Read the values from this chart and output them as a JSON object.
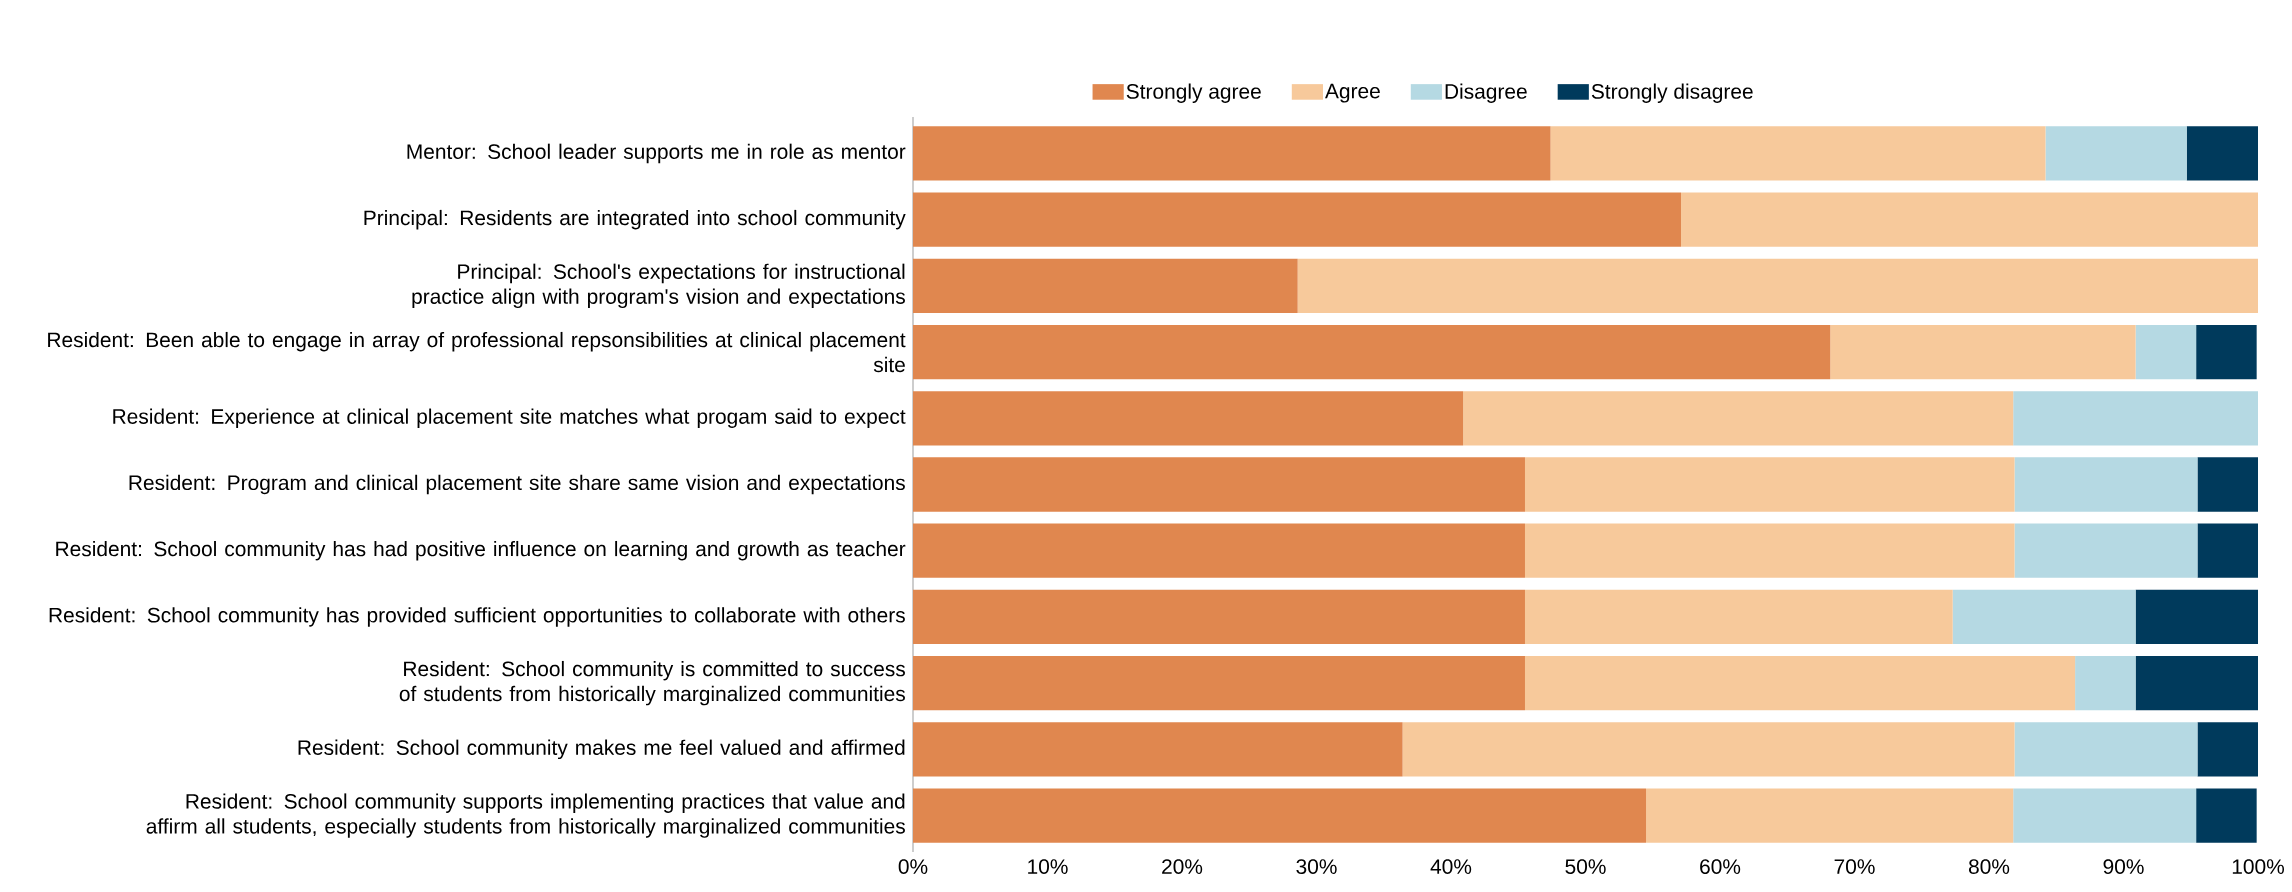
{
  "chart_data": {
    "type": "bar",
    "orientation": "horizontal",
    "stacked": true,
    "legend": "top",
    "grid": false,
    "categories": [
      "Mentor: School leader supports me in role as mentor",
      "Principal: Residents are integrated into school community",
      "Principal: School's expectations for instructional practice align with program's vision and expectations",
      "Resident: Been able to engage in array of professional repsonsibilities at clinical placement site",
      "Resident: Experience at clinical placement site matches what progam said to expect",
      "Resident: Program and clinical placement site share same vision and expectations",
      "Resident: School community has had positive influence on learning and growth as teacher",
      "Resident: School community has provided sufficient opportunities to collaborate with others",
      "Resident: School community is committed to success of students from historically marginalized communities",
      "Resident: School community makes me feel valued and affirmed",
      "Resident: School community supports implementing practices that value and affirm all students, especially students from historically marginalized communities"
    ],
    "series": [
      {
        "name": "Strongly agree",
        "color": "#e0874f",
        "values": [
          47.4,
          57.1,
          28.6,
          68.2,
          40.9,
          45.5,
          45.5,
          45.5,
          45.5,
          36.4,
          54.5
        ]
      },
      {
        "name": "Agree",
        "color": "#f7c99b",
        "values": [
          36.8,
          42.9,
          71.4,
          22.7,
          40.9,
          36.4,
          36.4,
          31.8,
          40.9,
          45.5,
          27.3
        ]
      },
      {
        "name": "Disagree",
        "color": "#b5d9e3",
        "values": [
          10.5,
          0,
          0,
          4.5,
          18.2,
          13.6,
          13.6,
          13.6,
          4.5,
          13.6,
          13.6
        ]
      },
      {
        "name": "Strongly disagree",
        "color": "#003a5c",
        "values": [
          5.3,
          0,
          0,
          4.5,
          0,
          4.5,
          4.5,
          9.1,
          9.1,
          4.5,
          4.5
        ]
      }
    ],
    "xlim": [
      0,
      100
    ],
    "xticks": [
      {
        "value": 0,
        "label": "0%"
      },
      {
        "value": 10,
        "label": "10%"
      },
      {
        "value": 20,
        "label": "20%"
      },
      {
        "value": 30,
        "label": "30%"
      },
      {
        "value": 40,
        "label": "40%"
      },
      {
        "value": 50,
        "label": "50%"
      },
      {
        "value": 60,
        "label": "60%"
      },
      {
        "value": 70,
        "label": "70%"
      },
      {
        "value": 80,
        "label": "80%"
      },
      {
        "value": 90,
        "label": "90%"
      },
      {
        "value": 100,
        "label": "100%"
      }
    ]
  }
}
